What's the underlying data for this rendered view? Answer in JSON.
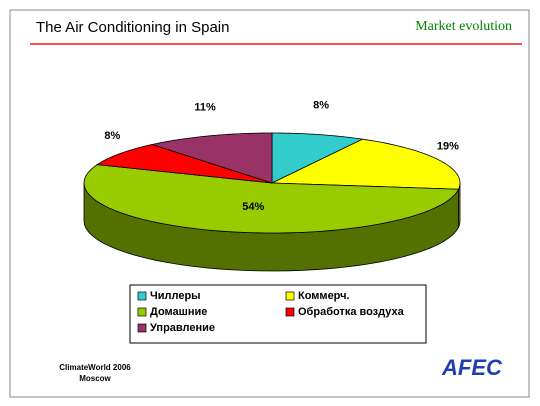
{
  "title": "The Air Conditioning in Spain",
  "subtitle": "Market evolution",
  "footer": {
    "event": "ClimateWorld 2006",
    "city": "Moscow",
    "logo": "AFEC"
  },
  "chart_data": {
    "type": "pie",
    "categories": [
      "Чиллеры",
      "Коммерч.",
      "Домашние",
      "Обработка воздуха",
      "Управление"
    ],
    "values": [
      8,
      19,
      54,
      8,
      11
    ],
    "value_labels": [
      "8%",
      "19%",
      "54%",
      "8%",
      "11%"
    ],
    "colors": [
      "#33cccc",
      "#ffff00",
      "#99cc00",
      "#ff0000",
      "#993366"
    ],
    "legend": "bottom"
  }
}
